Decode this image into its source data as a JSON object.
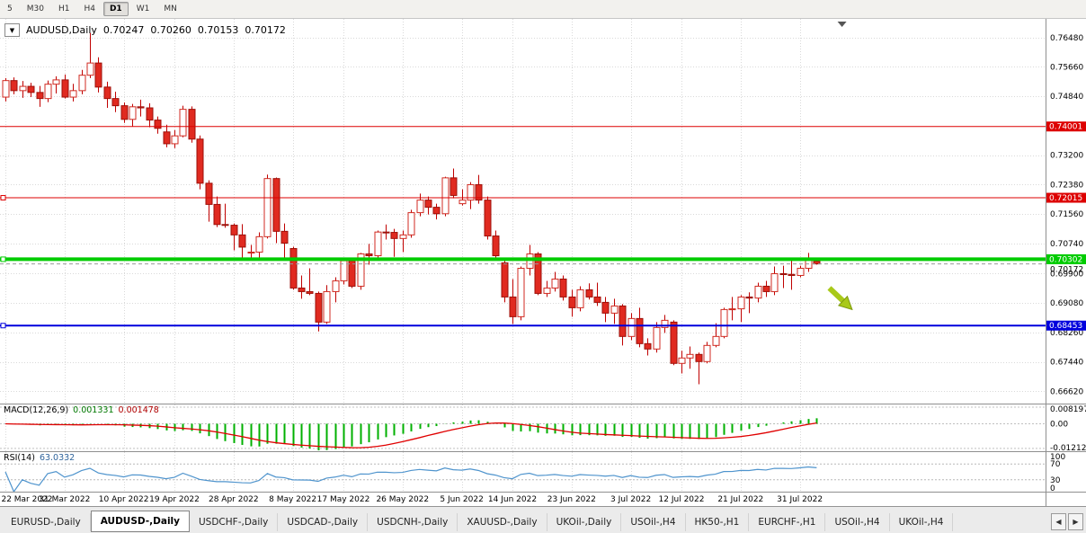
{
  "toolbar": {
    "timeframes": [
      {
        "label": "5",
        "active": false
      },
      {
        "label": "M30",
        "active": false
      },
      {
        "label": "H1",
        "active": false
      },
      {
        "label": "H4",
        "active": false
      },
      {
        "label": "D1",
        "active": true
      },
      {
        "label": "W1",
        "active": false
      },
      {
        "label": "MN",
        "active": false
      }
    ]
  },
  "chart": {
    "dropdown_glyph": "▼",
    "title": "AUDUSD,Daily",
    "ohlc": {
      "open": "0.70247",
      "high": "0.70260",
      "low": "0.70153",
      "close": "0.70172"
    }
  },
  "chart_data": {
    "type": "candlestick",
    "symbol": "AUDUSD",
    "timeframe": "Daily",
    "y_range": [
      0.6628,
      0.77
    ],
    "y_axis_labels": [
      "0.76480",
      "0.75660",
      "0.74840",
      "0.73200",
      "0.72380",
      "0.71560",
      "0.70740",
      "0.69900",
      "0.69080",
      "0.68260",
      "0.67440",
      "0.66620"
    ],
    "x_labels": [
      {
        "text": "22 Mar 2022",
        "i": 0
      },
      {
        "text": "31 Mar 2022",
        "i": 7
      },
      {
        "text": "10 Apr 2022",
        "i": 14
      },
      {
        "text": "19 Apr 2022",
        "i": 20
      },
      {
        "text": "28 Apr 2022",
        "i": 27
      },
      {
        "text": "8 May 2022",
        "i": 34
      },
      {
        "text": "17 May 2022",
        "i": 40
      },
      {
        "text": "26 May 2022",
        "i": 47
      },
      {
        "text": "5 Jun 2022",
        "i": 54
      },
      {
        "text": "14 Jun 2022",
        "i": 60
      },
      {
        "text": "23 Jun 2022",
        "i": 67
      },
      {
        "text": "3 Jul 2022",
        "i": 74
      },
      {
        "text": "12 Jul 2022",
        "i": 80
      },
      {
        "text": "21 Jul 2022",
        "i": 87
      },
      {
        "text": "31 Jul 2022",
        "i": 94
      }
    ],
    "candles": [
      [
        0.7482,
        0.7535,
        0.747,
        0.7528
      ],
      [
        0.7528,
        0.7537,
        0.749,
        0.75
      ],
      [
        0.75,
        0.7527,
        0.748,
        0.7512
      ],
      [
        0.7512,
        0.7522,
        0.7482,
        0.7495
      ],
      [
        0.7495,
        0.7513,
        0.7455,
        0.7478
      ],
      [
        0.7478,
        0.7528,
        0.7468,
        0.7518
      ],
      [
        0.7518,
        0.754,
        0.7492,
        0.753
      ],
      [
        0.753,
        0.7545,
        0.7478,
        0.7482
      ],
      [
        0.7482,
        0.7519,
        0.747,
        0.75
      ],
      [
        0.75,
        0.7558,
        0.749,
        0.7543
      ],
      [
        0.7543,
        0.7661,
        0.7535,
        0.7577
      ],
      [
        0.7577,
        0.7593,
        0.7495,
        0.751
      ],
      [
        0.751,
        0.7525,
        0.7452,
        0.7478
      ],
      [
        0.7478,
        0.7497,
        0.744,
        0.7458
      ],
      [
        0.7458,
        0.7467,
        0.741,
        0.742
      ],
      [
        0.742,
        0.7463,
        0.74,
        0.7455
      ],
      [
        0.7455,
        0.7475,
        0.7428,
        0.7452
      ],
      [
        0.7452,
        0.7465,
        0.7398,
        0.7418
      ],
      [
        0.7418,
        0.7428,
        0.738,
        0.7395
      ],
      [
        0.7385,
        0.7405,
        0.7342,
        0.7352
      ],
      [
        0.7352,
        0.739,
        0.734,
        0.7374
      ],
      [
        0.7374,
        0.7458,
        0.737,
        0.7448
      ],
      [
        0.7448,
        0.7456,
        0.7355,
        0.7365
      ],
      [
        0.7365,
        0.7375,
        0.7225,
        0.7242
      ],
      [
        0.7242,
        0.725,
        0.7135,
        0.7183
      ],
      [
        0.7183,
        0.7205,
        0.712,
        0.7127
      ],
      [
        0.7127,
        0.7185,
        0.7118,
        0.7125
      ],
      [
        0.7125,
        0.713,
        0.7055,
        0.7098
      ],
      [
        0.7098,
        0.7128,
        0.703,
        0.7064
      ],
      [
        0.705,
        0.707,
        0.7029,
        0.705
      ],
      [
        0.705,
        0.7105,
        0.7035,
        0.7093
      ],
      [
        0.7093,
        0.7266,
        0.7088,
        0.7255
      ],
      [
        0.7255,
        0.7258,
        0.7075,
        0.7108
      ],
      [
        0.7108,
        0.713,
        0.7035,
        0.7075
      ],
      [
        0.706,
        0.7065,
        0.6945,
        0.695
      ],
      [
        0.695,
        0.6985,
        0.692,
        0.694
      ],
      [
        0.694,
        0.7005,
        0.693,
        0.6935
      ],
      [
        0.6935,
        0.694,
        0.6829,
        0.6855
      ],
      [
        0.6855,
        0.6958,
        0.685,
        0.694
      ],
      [
        0.694,
        0.698,
        0.691,
        0.697
      ],
      [
        0.697,
        0.7035,
        0.696,
        0.7026
      ],
      [
        0.7026,
        0.7032,
        0.695,
        0.6955
      ],
      [
        0.6955,
        0.7048,
        0.6945,
        0.7045
      ],
      [
        0.7045,
        0.7073,
        0.7015,
        0.704
      ],
      [
        0.704,
        0.711,
        0.7028,
        0.7106
      ],
      [
        0.7106,
        0.7127,
        0.7085,
        0.7105
      ],
      [
        0.7105,
        0.7115,
        0.7037,
        0.7088
      ],
      [
        0.7088,
        0.711,
        0.705,
        0.7098
      ],
      [
        0.7098,
        0.7168,
        0.709,
        0.716
      ],
      [
        0.716,
        0.7213,
        0.715,
        0.7195
      ],
      [
        0.7195,
        0.7205,
        0.7155,
        0.7175
      ],
      [
        0.7175,
        0.7185,
        0.7141,
        0.7157
      ],
      [
        0.7157,
        0.726,
        0.715,
        0.7257
      ],
      [
        0.7257,
        0.7283,
        0.72,
        0.7208
      ],
      [
        0.7185,
        0.7225,
        0.718,
        0.7195
      ],
      [
        0.7195,
        0.7245,
        0.717,
        0.7238
      ],
      [
        0.7238,
        0.7265,
        0.7185,
        0.7195
      ],
      [
        0.7195,
        0.7205,
        0.7085,
        0.7095
      ],
      [
        0.7095,
        0.711,
        0.703,
        0.704
      ],
      [
        0.702,
        0.7035,
        0.691,
        0.6925
      ],
      [
        0.6925,
        0.6975,
        0.685,
        0.687
      ],
      [
        0.687,
        0.701,
        0.686,
        0.7005
      ],
      [
        0.7005,
        0.707,
        0.6985,
        0.7045
      ],
      [
        0.7045,
        0.705,
        0.693,
        0.6935
      ],
      [
        0.6935,
        0.697,
        0.6925,
        0.695
      ],
      [
        0.695,
        0.6995,
        0.694,
        0.6975
      ],
      [
        0.6975,
        0.6985,
        0.6915,
        0.6925
      ],
      [
        0.6925,
        0.6945,
        0.687,
        0.6895
      ],
      [
        0.6895,
        0.6955,
        0.6885,
        0.6945
      ],
      [
        0.6945,
        0.6963,
        0.6918,
        0.6925
      ],
      [
        0.6925,
        0.6965,
        0.69,
        0.691
      ],
      [
        0.691,
        0.6925,
        0.6855,
        0.688
      ],
      [
        0.688,
        0.692,
        0.685,
        0.69
      ],
      [
        0.69,
        0.6905,
        0.679,
        0.6815
      ],
      [
        0.6815,
        0.688,
        0.6805,
        0.6865
      ],
      [
        0.6865,
        0.6895,
        0.6785,
        0.6795
      ],
      [
        0.6795,
        0.681,
        0.6762,
        0.678
      ],
      [
        0.678,
        0.6855,
        0.677,
        0.684
      ],
      [
        0.684,
        0.6875,
        0.6825,
        0.686
      ],
      [
        0.6855,
        0.686,
        0.6735,
        0.674
      ],
      [
        0.674,
        0.6775,
        0.6712,
        0.6755
      ],
      [
        0.6755,
        0.6787,
        0.6725,
        0.6765
      ],
      [
        0.6765,
        0.677,
        0.6682,
        0.6745
      ],
      [
        0.6745,
        0.68,
        0.674,
        0.679
      ],
      [
        0.679,
        0.6852,
        0.6785,
        0.6815
      ],
      [
        0.6815,
        0.6895,
        0.681,
        0.689
      ],
      [
        0.689,
        0.6925,
        0.686,
        0.6892
      ],
      [
        0.6892,
        0.693,
        0.6855,
        0.6925
      ],
      [
        0.6925,
        0.6938,
        0.688,
        0.6922
      ],
      [
        0.6922,
        0.6965,
        0.691,
        0.6955
      ],
      [
        0.6955,
        0.697,
        0.6925,
        0.694
      ],
      [
        0.694,
        0.701,
        0.693,
        0.699
      ],
      [
        0.699,
        0.7012,
        0.695,
        0.6988
      ],
      [
        0.6988,
        0.7032,
        0.6945,
        0.6985
      ],
      [
        0.6985,
        0.7012,
        0.698,
        0.7005
      ],
      [
        0.7005,
        0.7048,
        0.6995,
        0.703
      ],
      [
        0.70247,
        0.7026,
        0.70153,
        0.70172
      ]
    ],
    "hlines": [
      {
        "price": 0.74001,
        "label": "0.74001",
        "color": "#dd0000",
        "width": 1,
        "left_marker": false
      },
      {
        "price": 0.72015,
        "label": "0.72015",
        "color": "#dd0000",
        "width": 1,
        "left_marker": true
      },
      {
        "price": 0.70302,
        "label": "0.70302",
        "color": "#00cc00",
        "width": 4,
        "left_marker": true
      },
      {
        "price": 0.68453,
        "label": "0.68453",
        "color": "#0000dd",
        "width": 2,
        "left_marker": true
      }
    ],
    "bid_line": {
      "price": 0.70172,
      "label": "0.70172",
      "color": "#9a9a9a"
    },
    "colors": {
      "grid": "#d9d9d9",
      "wick": "#c00000",
      "bull_fill": "#ffffff",
      "bull_border": "#d02a20",
      "bear_fill": "#e02a20",
      "bear_border": "#9c0f08",
      "macd_hist": "#00b000",
      "macd_signal": "#e00000",
      "rsi_line": "#4f94cd"
    },
    "indicators": {
      "macd": {
        "label": "MACD(12,26,9)",
        "main_value": "0.001331",
        "signal_value": "0.001478",
        "scale_labels": [
          "0.008197",
          "0.00",
          "-0.012121"
        ],
        "fast": 12,
        "slow": 26,
        "signal": 9
      },
      "rsi": {
        "label": "RSI(14)",
        "value": "63.0332",
        "period": 14,
        "levels": [
          "100",
          "70",
          "30",
          "0"
        ],
        "level_lines": [
          70,
          30
        ]
      }
    },
    "arrow": {
      "from_index": 97.5,
      "from_price": 0.695,
      "to_index": 100.2,
      "to_price": 0.689,
      "color": "#a9c919",
      "outline": "#7e9a0e"
    },
    "shift_marker_index": 99
  },
  "tabs": {
    "items": [
      {
        "label": "EURUSD-,Daily",
        "active": false
      },
      {
        "label": "AUDUSD-,Daily",
        "active": true
      },
      {
        "label": "USDCHF-,Daily",
        "active": false
      },
      {
        "label": "USDCAD-,Daily",
        "active": false
      },
      {
        "label": "USDCNH-,Daily",
        "active": false
      },
      {
        "label": "XAUUSD-,Daily",
        "active": false
      },
      {
        "label": "UKOil-,Daily",
        "active": false
      },
      {
        "label": "USOil-,H4",
        "active": false
      },
      {
        "label": "HK50-,H1",
        "active": false
      },
      {
        "label": "EURCHF-,H1",
        "active": false
      },
      {
        "label": "USOil-,H4",
        "active": false
      },
      {
        "label": "UKOil-,H4",
        "active": false
      }
    ],
    "nav_left": "◀",
    "nav_right": "▶"
  }
}
